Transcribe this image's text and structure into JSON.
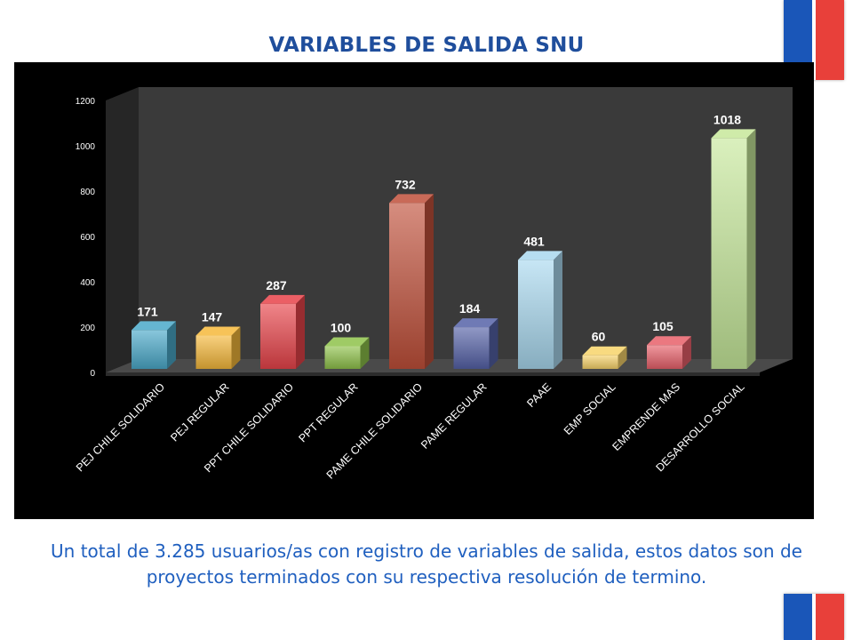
{
  "title": "VARIABLES DE SALIDA SNU",
  "caption": "Un total de 3.285 usuarios/as con registro de variables de salida, estos datos son de proyectos terminados con su respectiva resolución de termino.",
  "colors": {
    "flag_blue": "#1a56b8",
    "flag_red": "#e8403a",
    "title": "#1f4e9c",
    "caption": "#1f5fbf"
  },
  "chart_data": {
    "type": "bar",
    "style": "3d",
    "title": "",
    "xlabel": "",
    "ylabel": "",
    "ylim": [
      0,
      1200
    ],
    "yticks": [
      0,
      200,
      400,
      600,
      800,
      1000,
      1200
    ],
    "grid": false,
    "categories": [
      "PEJ CHILE SOLIDARIO",
      "PEJ REGULAR",
      "PPT CHILE SOLIDARIO",
      "PPT REGULAR",
      "PAME CHILE SOLIDARIO",
      "PAME REGULAR",
      "PAAE",
      "EMP SOCIAL",
      "EMPRENDE MAS",
      "DESARROLLO SOCIAL"
    ],
    "values": [
      171,
      147,
      287,
      100,
      732,
      184,
      481,
      60,
      105,
      1018
    ],
    "bar_colors": [
      "#4aa9c9",
      "#f5b83a",
      "#e8434a",
      "#8ec24a",
      "#c0503a",
      "#5562a8",
      "#a9d8ef",
      "#f7d36a",
      "#e8606a",
      "#c6e89a"
    ]
  }
}
